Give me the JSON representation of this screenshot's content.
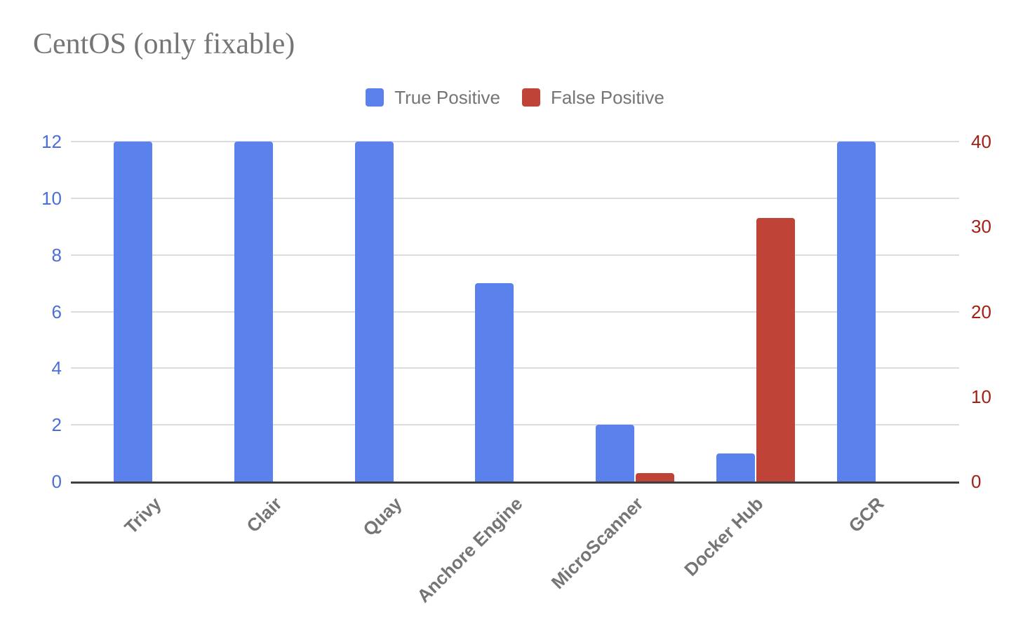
{
  "chart_data": {
    "type": "bar",
    "title": "CentOS (only fixable)",
    "categories": [
      "Trivy",
      "Clair",
      "Quay",
      "Anchore Engine",
      "MicroScanner",
      "Docker Hub",
      "GCR"
    ],
    "series": [
      {
        "name": "True Positive",
        "axis": "left",
        "color": "#5b81ec",
        "values": [
          12,
          12,
          12,
          7,
          2,
          1,
          12
        ]
      },
      {
        "name": "False Positive",
        "axis": "right",
        "color": "#bf4337",
        "values": [
          0,
          0,
          0,
          0,
          1,
          31,
          0
        ]
      }
    ],
    "left_axis": {
      "range": [
        0,
        12
      ],
      "ticks": [
        0,
        2,
        4,
        6,
        8,
        10,
        12
      ],
      "label_color": "#4a6fdc"
    },
    "right_axis": {
      "range": [
        0,
        40
      ],
      "ticks": [
        0,
        10,
        20,
        30,
        40
      ],
      "label_color": "#a42015"
    },
    "legend_position": "top-center",
    "grid": "horizontal",
    "colors": {
      "title_text": "#757575",
      "legend_text": "#757575",
      "category_text": "#757575",
      "gridline": "#dadce0",
      "axis_line": "#3c4043"
    }
  }
}
